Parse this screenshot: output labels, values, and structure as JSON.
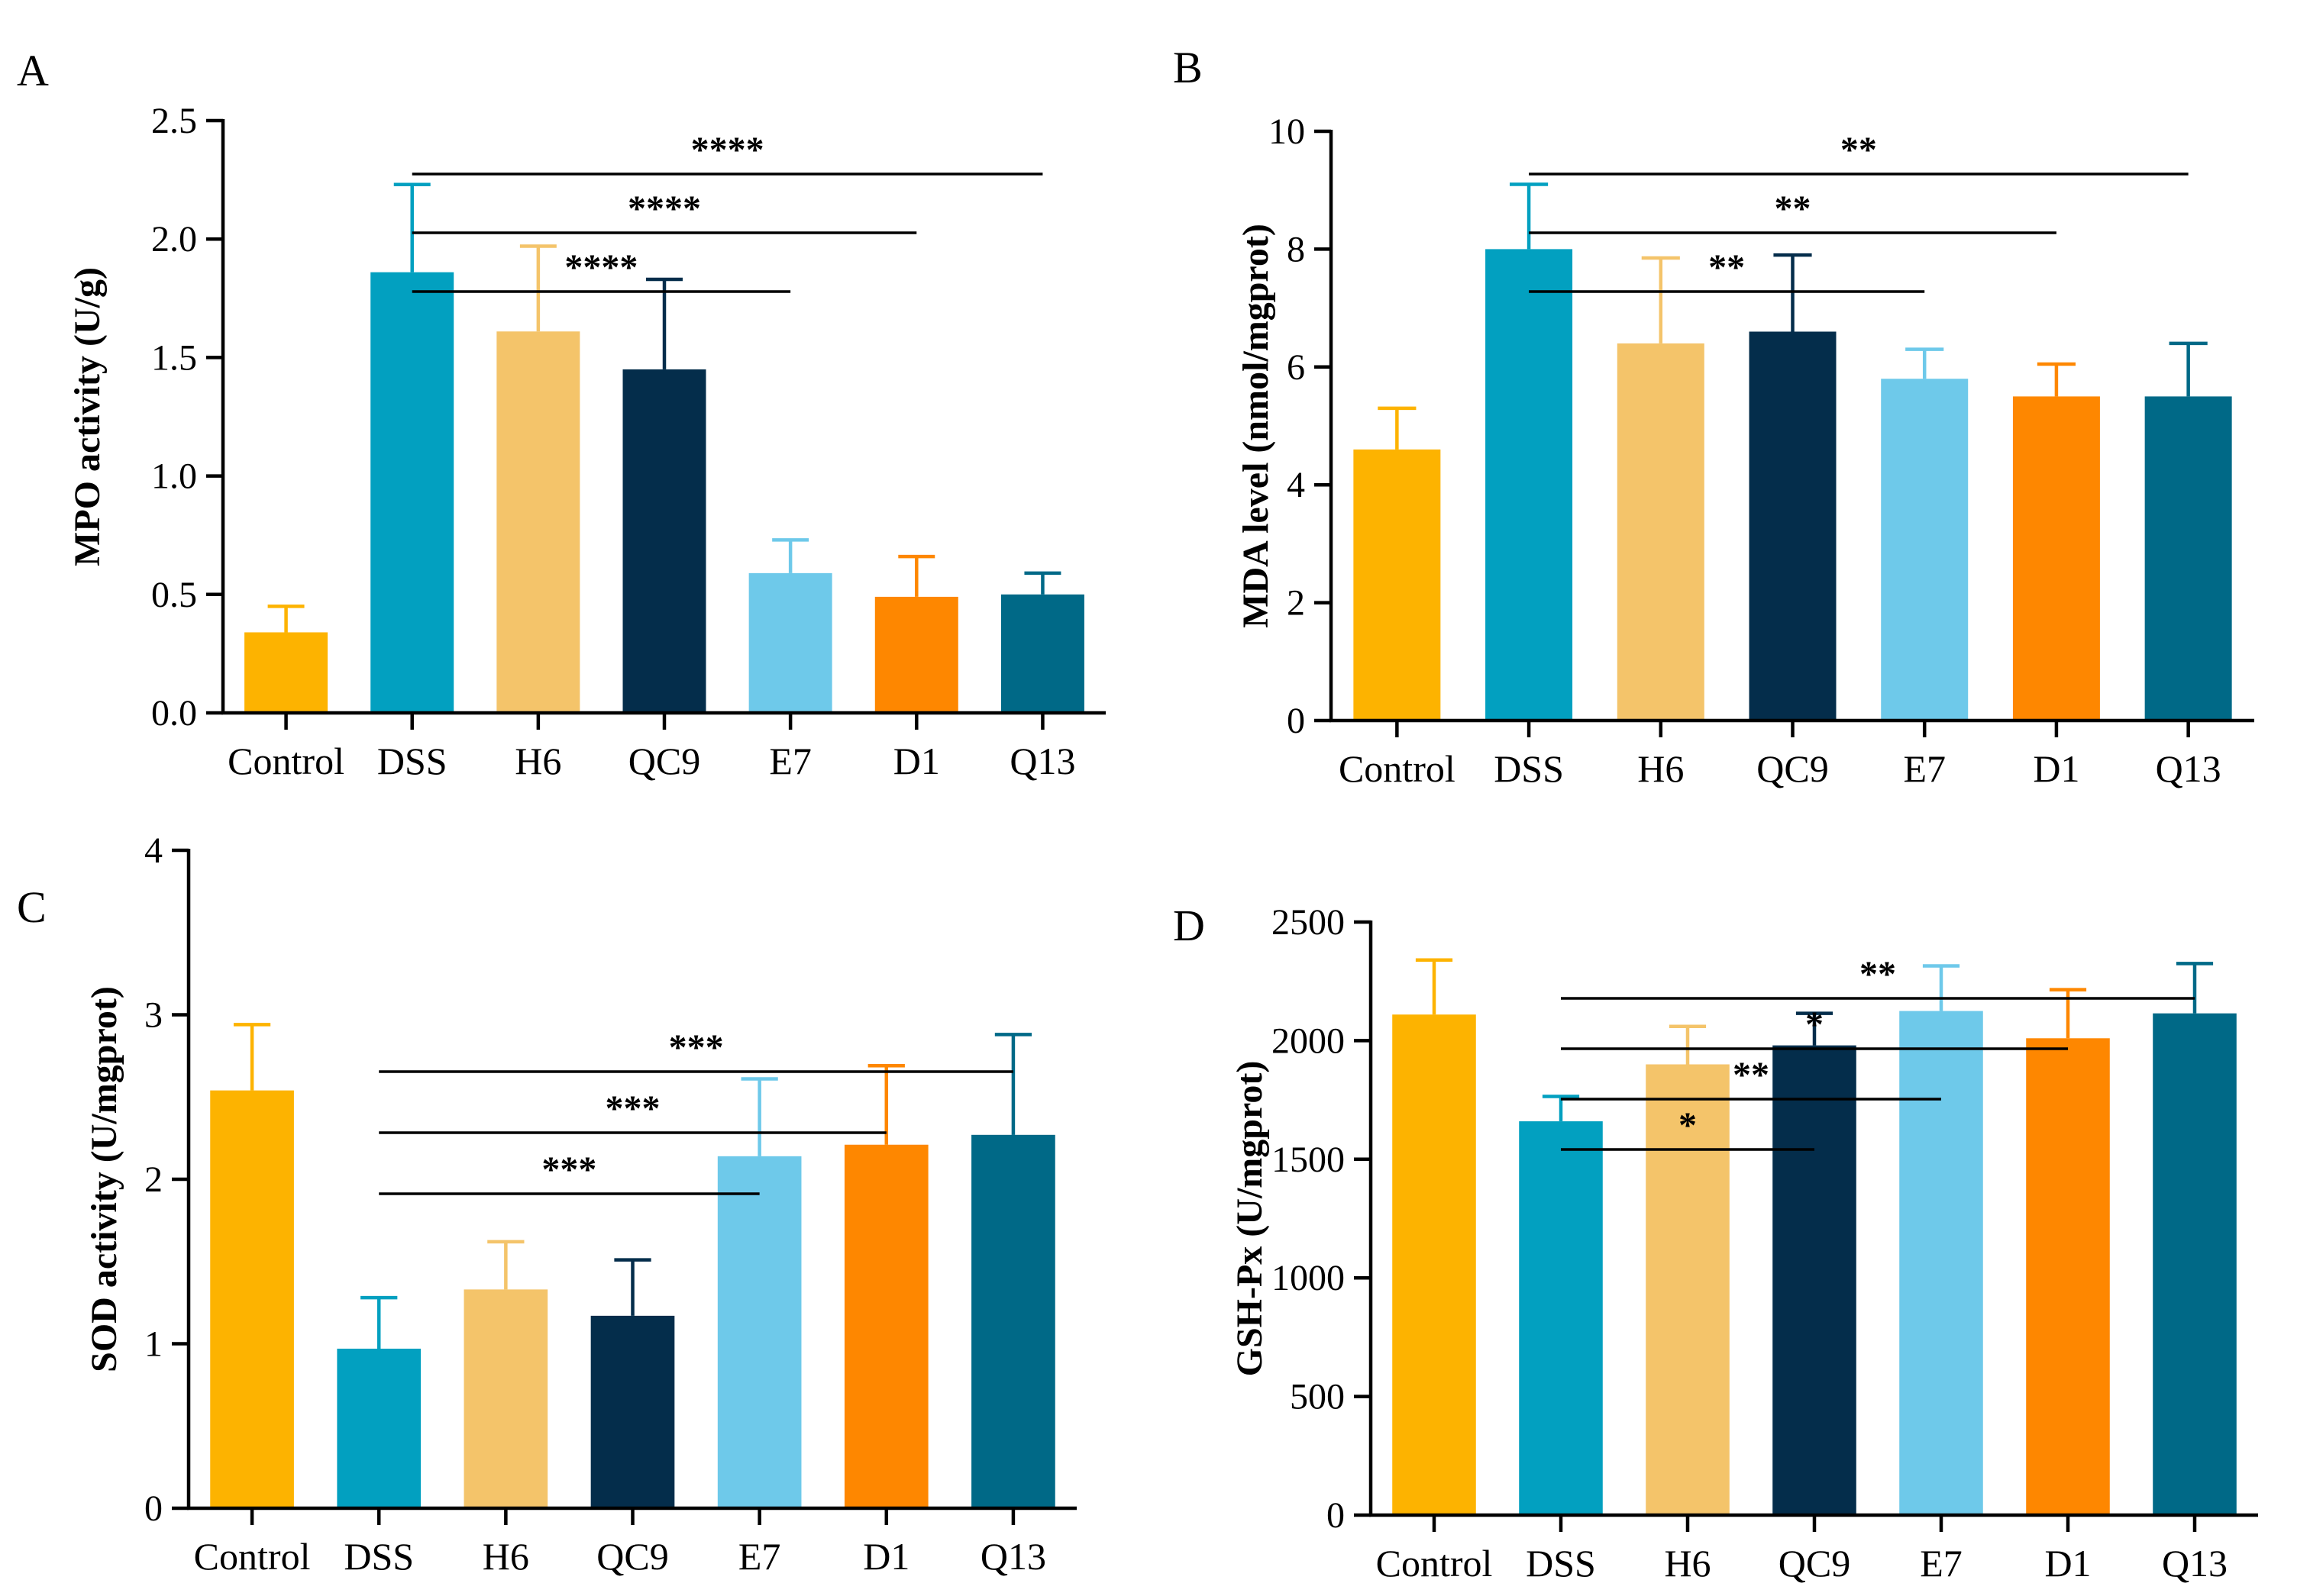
{
  "chart_data": [
    {
      "panel": "A",
      "type": "bar",
      "categories": [
        "Control",
        "DSS",
        "H6",
        "QC9",
        "E7",
        "D1",
        "Q13"
      ],
      "values": [
        0.34,
        1.86,
        1.61,
        1.45,
        0.59,
        0.49,
        0.5
      ],
      "errors": [
        0.11,
        0.37,
        0.36,
        0.38,
        0.14,
        0.17,
        0.09
      ],
      "ylabel": "MPO activity (U/g)",
      "ylim": [
        0,
        2.5
      ],
      "yticks": [
        0.0,
        0.5,
        1.0,
        1.5,
        2.0,
        2.5
      ],
      "ytick_labels": [
        "0.0",
        "0.5",
        "1.0",
        "1.5",
        "2.0",
        "2.5"
      ],
      "significance": [
        {
          "from": "DSS",
          "to": "E7",
          "label": "****"
        },
        {
          "from": "DSS",
          "to": "D1",
          "label": "****"
        },
        {
          "from": "DSS",
          "to": "Q13",
          "label": "****"
        }
      ]
    },
    {
      "panel": "B",
      "type": "bar",
      "categories": [
        "Control",
        "DSS",
        "H6",
        "QC9",
        "E7",
        "D1",
        "Q13"
      ],
      "values": [
        4.6,
        8.0,
        6.4,
        6.6,
        5.8,
        5.5,
        5.5
      ],
      "errors": [
        0.7,
        1.1,
        1.45,
        1.3,
        0.5,
        0.55,
        0.9
      ],
      "ylabel": "MDA level (nmol/mgprot)",
      "ylim": [
        0,
        10
      ],
      "yticks": [
        0,
        2,
        4,
        6,
        8,
        10
      ],
      "ytick_labels": [
        "0",
        "2",
        "4",
        "6",
        "8",
        "10"
      ],
      "significance": [
        {
          "from": "DSS",
          "to": "E7",
          "label": "**"
        },
        {
          "from": "DSS",
          "to": "D1",
          "label": "**"
        },
        {
          "from": "DSS",
          "to": "Q13",
          "label": "**"
        }
      ]
    },
    {
      "panel": "C",
      "type": "bar",
      "categories": [
        "Control",
        "DSS",
        "H6",
        "QC9",
        "E7",
        "D1",
        "Q13"
      ],
      "values": [
        2.54,
        0.97,
        1.33,
        1.17,
        2.14,
        2.21,
        2.27
      ],
      "errors": [
        0.4,
        0.31,
        0.29,
        0.34,
        0.47,
        0.48,
        0.61
      ],
      "ylabel": "SOD activity (U/mgprot)",
      "ylim": [
        0,
        4
      ],
      "yticks": [
        0,
        1,
        2,
        3,
        4
      ],
      "ytick_labels": [
        "0",
        "1",
        "2",
        "3",
        "4"
      ],
      "significance": [
        {
          "from": "DSS",
          "to": "E7",
          "label": "***"
        },
        {
          "from": "DSS",
          "to": "D1",
          "label": "***"
        },
        {
          "from": "DSS",
          "to": "Q13",
          "label": "***"
        }
      ]
    },
    {
      "panel": "D",
      "type": "bar",
      "categories": [
        "Control",
        "DSS",
        "H6",
        "QC9",
        "E7",
        "D1",
        "Q13"
      ],
      "values": [
        2110,
        1660,
        1900,
        1980,
        2125,
        2010,
        2115
      ],
      "errors": [
        230,
        105,
        160,
        135,
        190,
        205,
        210
      ],
      "ylabel": "GSH-Px (U/mgprot)",
      "ylim": [
        0,
        2500
      ],
      "yticks": [
        0,
        500,
        1000,
        1500,
        2000,
        2500
      ],
      "ytick_labels": [
        "0",
        "500",
        "1000",
        "1500",
        "2000",
        "2500"
      ],
      "significance": [
        {
          "from": "DSS",
          "to": "QC9",
          "label": "*"
        },
        {
          "from": "DSS",
          "to": "E7",
          "label": "**"
        },
        {
          "from": "DSS",
          "to": "D1",
          "label": "*"
        },
        {
          "from": "DSS",
          "to": "Q13",
          "label": "**"
        }
      ]
    }
  ],
  "colors": {
    "Control": "#FDB300",
    "DSS": "#02A0C0",
    "H6": "#F4C46A",
    "QC9": "#042D4B",
    "E7": "#6EC9EA",
    "D1": "#FE8700",
    "Q13": "#006987",
    "axis": "#000000"
  }
}
